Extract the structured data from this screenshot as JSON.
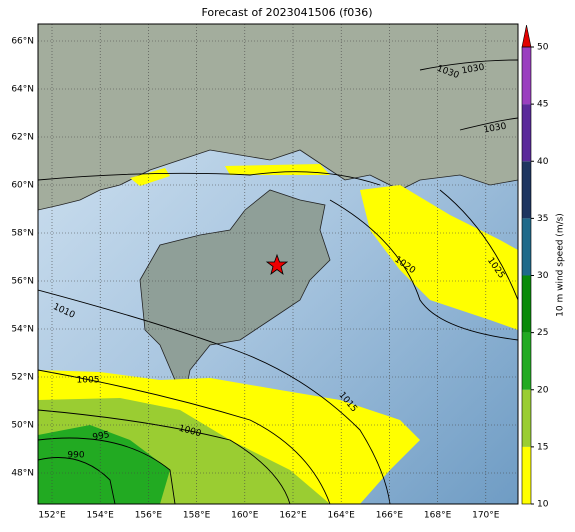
{
  "title": "Forecast of 2023041506 (f036)",
  "map": {
    "lat_labels": [
      "66°N",
      "64°N",
      "62°N",
      "60°N",
      "58°N",
      "56°N",
      "54°N",
      "52°N",
      "50°N",
      "48°N"
    ],
    "lon_labels": [
      "152°E",
      "154°E",
      "156°E",
      "158°E",
      "160°E",
      "162°E",
      "164°E",
      "166°E",
      "168°E",
      "170°E"
    ],
    "isobar_labels": [
      "1030",
      "1030",
      "1030",
      "1020",
      "1025",
      "1010",
      "1005",
      "1015",
      "1000",
      "995",
      "990"
    ]
  },
  "colorbar": {
    "label": "10 m wind speed (m/s)",
    "lim": [
      10,
      50
    ],
    "ticks": [
      10,
      15,
      20,
      25,
      30,
      35,
      40,
      45,
      50
    ],
    "colors": [
      "#ffff00",
      "#9acd32",
      "#22aa22",
      "#0a8a0a",
      "#1f6a8a",
      "#1e3560",
      "#5a2a9a",
      "#9a3fbf"
    ],
    "extend_color": "#e00000"
  }
}
